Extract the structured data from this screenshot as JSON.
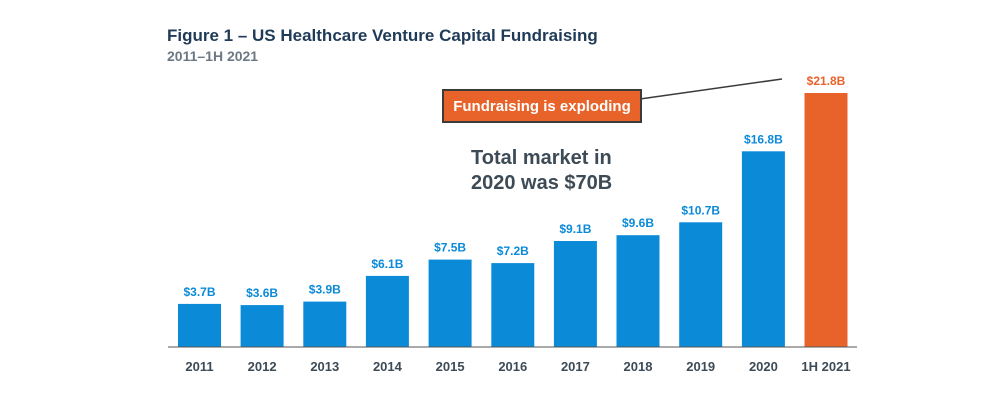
{
  "header": {
    "title": "Figure 1 – US Healthcare Venture Capital Fundraising",
    "subtitle": "2011–1H 2021"
  },
  "callout": {
    "text": "Fundraising is exploding"
  },
  "annotation": {
    "line1": "Total market in",
    "line2": "2020 was $70B"
  },
  "colors": {
    "bar": "#0b8ad8",
    "highlight": "#e8632a",
    "axis": "#555555",
    "title": "#1f3b57"
  },
  "chart_data": {
    "type": "bar",
    "title": "Figure 1 – US Healthcare Venture Capital Fundraising",
    "subtitle": "2011–1H 2021",
    "xlabel": "",
    "ylabel": "",
    "ylim": [
      0,
      22.5
    ],
    "grid": false,
    "categories": [
      "2011",
      "2012",
      "2013",
      "2014",
      "2015",
      "2016",
      "2017",
      "2018",
      "2019",
      "2020",
      "1H 2021"
    ],
    "values": [
      3.7,
      3.6,
      3.9,
      6.1,
      7.5,
      7.2,
      9.1,
      9.6,
      10.7,
      16.8,
      21.8
    ],
    "data_labels": [
      "$3.7B",
      "$3.6B",
      "$3.9B",
      "$6.1B",
      "$7.5B",
      "$7.2B",
      "$9.1B",
      "$9.6B",
      "$10.7B",
      "$16.8B",
      "$21.8B"
    ],
    "highlight_categories": [
      "1H 2021"
    ]
  }
}
